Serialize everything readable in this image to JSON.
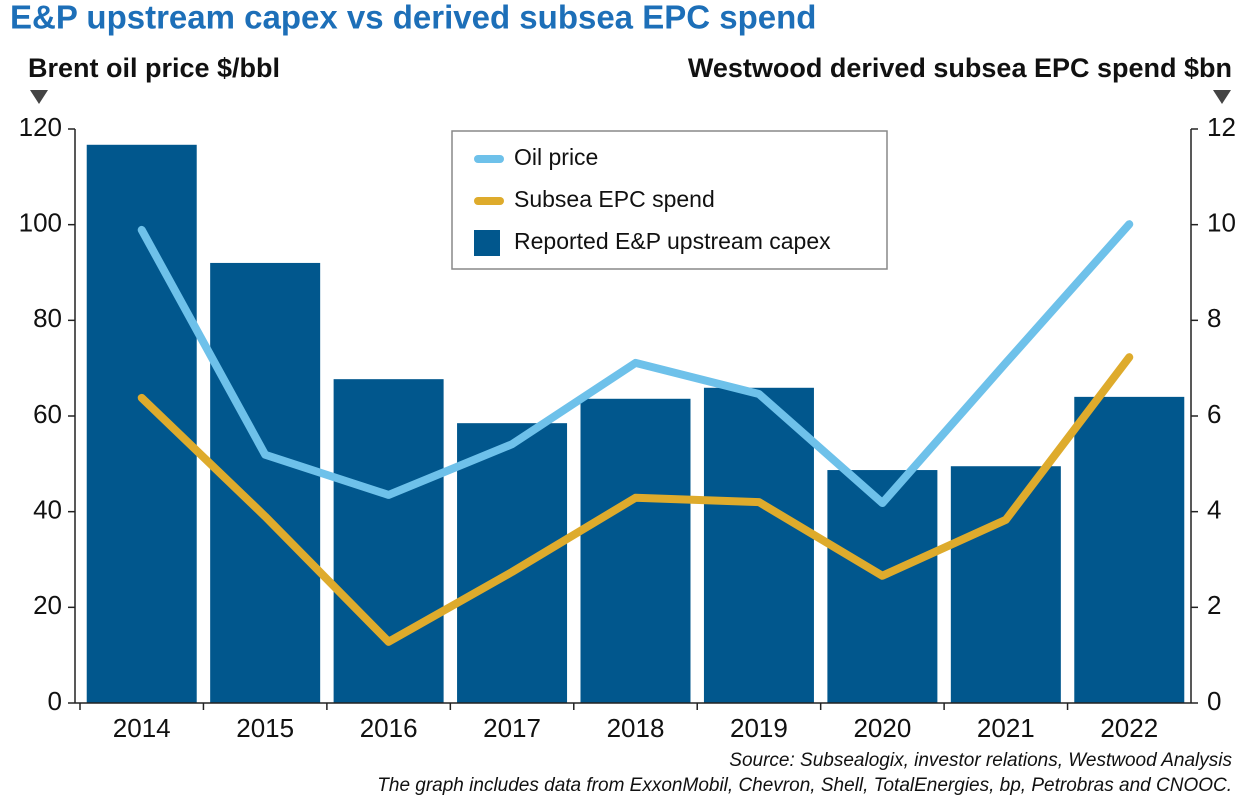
{
  "chart_data": {
    "type": "bar",
    "title": "E&P upstream capex vs derived subsea EPC spend",
    "y_label": "Brent oil price $/bbl",
    "y2_label": "Westwood derived subsea EPC spend $bn",
    "categories": [
      "2014",
      "2015",
      "2016",
      "2017",
      "2018",
      "2019",
      "2020",
      "2021",
      "2022"
    ],
    "series": [
      {
        "name": "Oil price",
        "type": "line",
        "color": "#6ec1ea",
        "axis": "y",
        "values": [
          98.9,
          51.9,
          43.5,
          54.1,
          71.1,
          64.6,
          41.8,
          71.1,
          100.1
        ]
      },
      {
        "name": "Subsea EPC spend",
        "type": "line",
        "color": "#deab2c",
        "axis": "y2",
        "values": [
          6.38,
          3.9,
          1.28,
          2.74,
          4.29,
          4.2,
          2.66,
          3.83,
          7.23
        ]
      },
      {
        "name": "Reported E&P upstream capex",
        "type": "bar",
        "color": "#01578d",
        "axis": "y",
        "values": [
          116.7,
          92.0,
          67.7,
          58.5,
          63.6,
          65.9,
          48.7,
          49.5,
          64.0
        ]
      }
    ],
    "ylim": [
      0,
      120
    ],
    "yticks": [
      0,
      20,
      40,
      60,
      80,
      100,
      120
    ],
    "y2lim": [
      0,
      12
    ],
    "y2ticks": [
      0,
      2,
      4,
      6,
      8,
      10,
      12
    ],
    "legend": "top",
    "source": "Source: Subsealogix, investor relations, Westwood Analysis",
    "note": "The graph includes data from ExxonMobil, Chevron, Shell, TotalEnergies, bp, Petrobras and CNOOC."
  }
}
